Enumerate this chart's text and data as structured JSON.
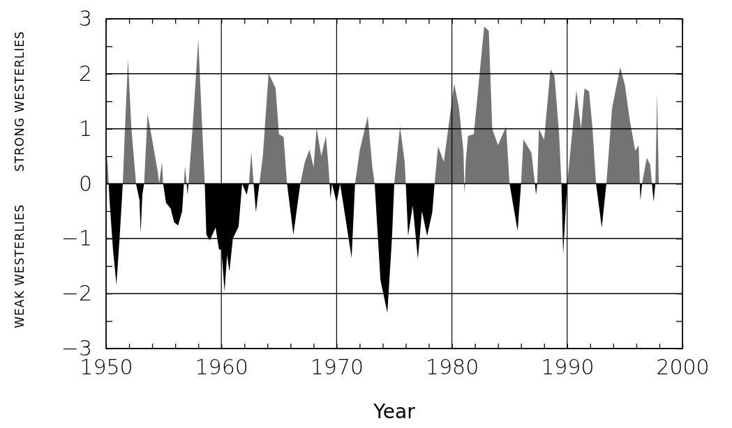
{
  "chart_data": {
    "type": "area",
    "xlabel": "Year",
    "ylabel": "WEAK WESTERLIES    STRONG WESTERLIES",
    "xlim": [
      1950,
      2000
    ],
    "ylim": [
      -3,
      3
    ],
    "xticks": [
      1950,
      {
        "value": 1952,
        "label": null
      },
      {
        "value": 1954,
        "label": null
      },
      {
        "value": 1956,
        "label": null
      },
      {
        "value": 1958,
        "label": null
      },
      1960,
      {
        "value": 1962,
        "label": null
      },
      {
        "value": 1964,
        "label": null
      },
      {
        "value": 1966,
        "label": null
      },
      {
        "value": 1968,
        "label": null
      },
      1970,
      {
        "value": 1972,
        "label": null
      },
      {
        "value": 1974,
        "label": null
      },
      {
        "value": 1976,
        "label": null
      },
      {
        "value": 1978,
        "label": null
      },
      1980,
      {
        "value": 1982,
        "label": null
      },
      {
        "value": 1984,
        "label": null
      },
      {
        "value": 1986,
        "label": null
      },
      {
        "value": 1988,
        "label": null
      },
      1990,
      {
        "value": 1992,
        "label": null
      },
      {
        "value": 1994,
        "label": null
      },
      {
        "value": 1996,
        "label": null
      },
      {
        "value": 1998,
        "label": null
      },
      2000
    ],
    "yticks": [
      -3,
      {
        "value": -2.5,
        "label": null
      },
      -2,
      {
        "value": -1.5,
        "label": null
      },
      -1,
      {
        "value": -0.5,
        "label": null
      },
      0,
      {
        "value": 0.5,
        "label": null
      },
      1,
      {
        "value": 1.5,
        "label": null
      },
      2,
      {
        "value": 2.5,
        "label": null
      },
      3
    ],
    "grid": true,
    "series": [
      {
        "color": "#000000",
        "x": [
          1950.0,
          1950.1,
          1950.3,
          1950.6,
          1950.9,
          1951.2,
          1951.45,
          1951.6,
          1951.9,
          1952.2,
          1952.6,
          1952.9,
          1953.0,
          1953.15,
          1953.3,
          1953.6,
          1954.0,
          1954.5,
          1954.6,
          1954.85,
          1954.95,
          1955.2,
          1955.6,
          1955.9,
          1956.25,
          1956.6,
          1956.75,
          1956.85,
          1957.0,
          1957.05,
          1957.15,
          1957.5,
          1958.0,
          1958.3,
          1958.56,
          1958.7,
          1959.0,
          1959.5,
          1959.8,
          1960.0,
          1960.28,
          1960.5,
          1960.7,
          1961.0,
          1961.5,
          1961.8,
          1962.2,
          1962.4,
          1962.6,
          1962.8,
          1963.0,
          1963.3,
          1963.6,
          1964.1,
          1964.7,
          1965.0,
          1965.4,
          1965.7,
          1966.25,
          1966.85,
          1967.25,
          1967.65,
          1968.0,
          1968.26,
          1968.67,
          1969.07,
          1969.3,
          1969.47,
          1969.6,
          1970.0,
          1970.3,
          1970.6,
          1971.3,
          1971.6,
          1972.0,
          1972.7,
          1973.1,
          1973.3,
          1973.8,
          1974.4,
          1974.8,
          1975.0,
          1975.5,
          1975.9,
          1976.0,
          1976.2,
          1976.6,
          1977.05,
          1977.4,
          1977.85,
          1978.3,
          1978.5,
          1978.8,
          1979.3,
          1980.2,
          1980.6,
          1981.0,
          1981.1,
          1981.2,
          1981.4,
          1981.9,
          1982.8,
          1983.2,
          1983.5,
          1984.0,
          1984.7,
          1985.0,
          1985.7,
          1986.0,
          1986.2,
          1986.9,
          1987.2,
          1987.3,
          1987.4,
          1987.55,
          1988.0,
          1988.55,
          1988.9,
          1989.3,
          1989.5,
          1989.65,
          1990.0,
          1990.8,
          1991.2,
          1991.5,
          1991.9,
          1992.2,
          1992.5,
          1993.0,
          1993.4,
          1993.9,
          1994.6,
          1995.0,
          1995.4,
          1995.9,
          1996.2,
          1996.35,
          1996.5,
          1996.9,
          1997.2,
          1997.5,
          1997.65,
          1997.8,
          1997.95
        ],
        "values": [
          0,
          0.53,
          -0.3,
          -1.2,
          -1.84,
          -0.9,
          0,
          0.8,
          2.27,
          1.0,
          0,
          -0.3,
          -0.9,
          -0.2,
          0,
          1.27,
          0.8,
          0.2,
          0,
          0.4,
          0,
          -0.35,
          -0.45,
          -0.7,
          -0.76,
          -0.5,
          0,
          0.32,
          0,
          -0.2,
          0,
          1.0,
          2.63,
          1.2,
          0,
          -0.93,
          -1.03,
          -0.8,
          -1.2,
          -1.2,
          -1.96,
          -1.3,
          -1.6,
          -1.0,
          -0.78,
          0,
          -0.2,
          0,
          0.58,
          0,
          -0.52,
          0,
          0.5,
          2.01,
          1.74,
          0.9,
          0.85,
          0,
          -0.93,
          0,
          0.4,
          0.62,
          0.3,
          1.02,
          0.5,
          0.87,
          0.3,
          -0.27,
          0,
          -0.35,
          0,
          -0.4,
          -1.35,
          0,
          0.6,
          1.23,
          0.3,
          0,
          -1.75,
          -2.35,
          -1.0,
          0,
          1.04,
          0.4,
          0,
          -0.95,
          -0.4,
          -1.37,
          -0.5,
          -0.95,
          -0.52,
          0,
          0.68,
          0.4,
          1.82,
          1.4,
          0.6,
          -0.17,
          0.4,
          0.87,
          0.9,
          2.86,
          2.78,
          1.0,
          0.7,
          1.04,
          0,
          -0.86,
          0,
          0.81,
          0.56,
          0,
          -0.2,
          0,
          1.0,
          0.8,
          2.08,
          1.96,
          0.9,
          0,
          -1.28,
          0,
          1.7,
          1.0,
          1.73,
          1.68,
          1.0,
          0,
          -0.8,
          0,
          1.38,
          2.12,
          1.8,
          1.2,
          0.6,
          0.7,
          -0.3,
          0,
          0.47,
          0.35,
          -0.33,
          0,
          1.65,
          0
        ]
      }
    ]
  }
}
